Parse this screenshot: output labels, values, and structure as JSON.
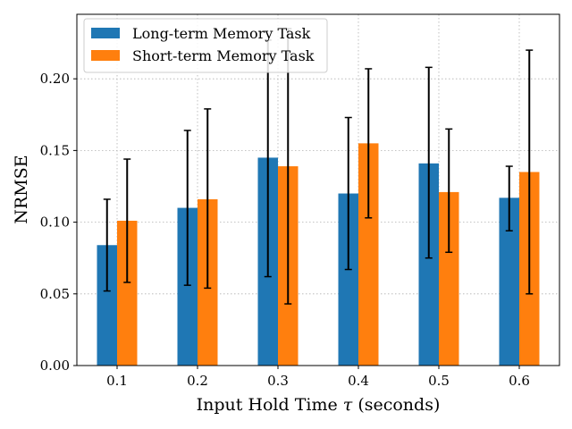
{
  "chart_data": {
    "type": "bar",
    "xlabel_prefix": "Input Hold Time ",
    "xlabel_symbol": "τ",
    "xlabel_suffix": " (seconds)",
    "ylabel": "NRMSE",
    "categories": [
      "0.1",
      "0.2",
      "0.3",
      "0.4",
      "0.5",
      "0.6"
    ],
    "ylim": [
      0,
      0.245
    ],
    "yticks": [
      "0.00",
      "0.05",
      "0.10",
      "0.15",
      "0.20"
    ],
    "ytick_values": [
      0,
      0.05,
      0.1,
      0.15,
      0.2
    ],
    "grid": true,
    "legend_position": "upper left",
    "error_bars": true,
    "series": [
      {
        "name": "Long-term Memory Task",
        "color": "#1f77b4",
        "values": [
          0.084,
          0.11,
          0.145,
          0.12,
          0.141,
          0.117
        ],
        "err_low": [
          0.052,
          0.056,
          0.062,
          0.067,
          0.075,
          0.094
        ],
        "err_high": [
          0.116,
          0.164,
          0.227,
          0.173,
          0.208,
          0.139
        ]
      },
      {
        "name": "Short-term Memory Task",
        "color": "#ff7f0e",
        "values": [
          0.101,
          0.116,
          0.139,
          0.155,
          0.121,
          0.135
        ],
        "err_low": [
          0.058,
          0.054,
          0.043,
          0.103,
          0.079,
          0.05
        ],
        "err_high": [
          0.144,
          0.179,
          0.235,
          0.207,
          0.165,
          0.22
        ]
      }
    ]
  }
}
